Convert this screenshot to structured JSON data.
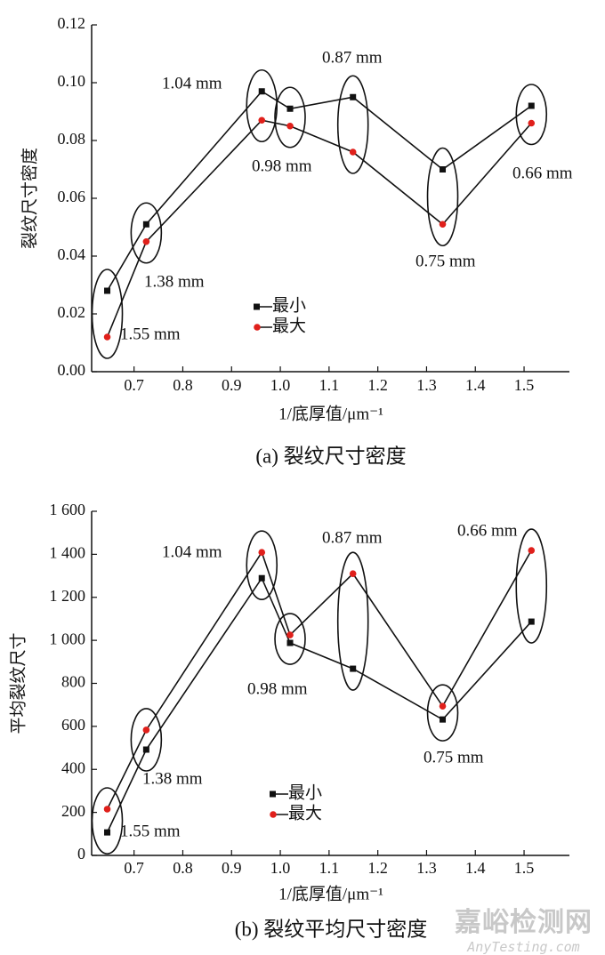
{
  "chart_data": [
    {
      "type": "line",
      "caption": "(a) 裂纹尺寸密度",
      "xlabel": "1/底厚值/μm⁻¹",
      "ylabel": "裂纹尺寸密度",
      "xlim": [
        0.613,
        1.593
      ],
      "ylim": [
        0,
        0.12
      ],
      "xticks": [
        0.7,
        0.8,
        0.9,
        1.0,
        1.1,
        1.2,
        1.3,
        1.4,
        1.5
      ],
      "xtick_labels": [
        "0.7",
        "0.8",
        "0.9",
        "1.0",
        "1.1",
        "1.2",
        "1.3",
        "1.4",
        "1.5"
      ],
      "yticks": [
        0,
        0.02,
        0.04,
        0.06,
        0.08,
        0.1,
        0.12
      ],
      "ytick_labels": [
        "0.00",
        "0.02",
        "0.04",
        "0.06",
        "0.08",
        "0.10",
        "0.12"
      ],
      "x": [
        0.645,
        0.725,
        0.962,
        1.02,
        1.149,
        1.333,
        1.515
      ],
      "annotations": [
        "1.55 mm",
        "1.38 mm",
        "1.04 mm",
        "0.98 mm",
        "0.87 mm",
        "0.75 mm",
        "0.66 mm"
      ],
      "legend_placement": "center-bottom",
      "grid": false,
      "series": [
        {
          "name": "最小",
          "marker": "square",
          "color": "#111111",
          "values": [
            0.028,
            0.051,
            0.097,
            0.091,
            0.095,
            0.07,
            0.092
          ]
        },
        {
          "name": "最大",
          "marker": "circle",
          "color": "#e0201b",
          "values": [
            0.012,
            0.045,
            0.087,
            0.085,
            0.076,
            0.051,
            0.086
          ]
        }
      ]
    },
    {
      "type": "line",
      "caption": "(b) 裂纹平均尺寸密度",
      "xlabel": "1/底厚值/μm⁻¹",
      "ylabel": "平均裂纹尺寸",
      "xlim": [
        0.613,
        1.593
      ],
      "ylim": [
        0,
        1600
      ],
      "xticks": [
        0.7,
        0.8,
        0.9,
        1.0,
        1.1,
        1.2,
        1.3,
        1.4,
        1.5
      ],
      "xtick_labels": [
        "0.7",
        "0.8",
        "0.9",
        "1.0",
        "1.1",
        "1.2",
        "1.3",
        "1.4",
        "1.5"
      ],
      "yticks": [
        0,
        200,
        400,
        600,
        800,
        1000,
        1200,
        1400,
        1600
      ],
      "ytick_labels": [
        "0",
        "200",
        "400",
        "600",
        "800",
        "1 000",
        "1 200",
        "1 400",
        "1 600"
      ],
      "x": [
        0.645,
        0.725,
        0.962,
        1.02,
        1.149,
        1.333,
        1.515
      ],
      "annotations": [
        "1.55 mm",
        "1.38 mm",
        "1.04 mm",
        "0.98 mm",
        "0.87 mm",
        "0.75 mm",
        "0.66 mm"
      ],
      "legend_placement": "center-bottom",
      "grid": false,
      "series": [
        {
          "name": "最小",
          "marker": "square",
          "color": "#111111",
          "values": [
            107,
            492,
            1289,
            988,
            868,
            632,
            1087
          ]
        },
        {
          "name": "最大",
          "marker": "circle",
          "color": "#e0201b",
          "values": [
            215,
            583,
            1409,
            1025,
            1310,
            694,
            1418
          ]
        }
      ]
    }
  ],
  "watermark": {
    "cn": "嘉峪检测网",
    "en": "AnyTesting.com"
  }
}
